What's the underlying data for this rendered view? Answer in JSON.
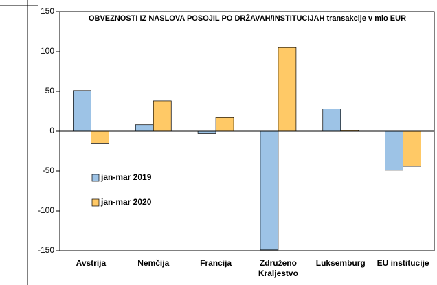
{
  "chart_data": {
    "type": "bar",
    "title": "OBVEZNOSTI IZ NASLOVA POSOJIL PO DRŽAVAH/INSTITUCIJAH transakcije v mio EUR",
    "categories": [
      "Avstrija",
      "Nemčija",
      "Francija",
      "Združeno Kraljestvo",
      "Luksemburg",
      "EU institucije"
    ],
    "series": [
      {
        "name": "jan-mar 2019",
        "color": "#9dc3e6",
        "values": [
          51,
          8,
          -3,
          -149,
          28,
          -49
        ]
      },
      {
        "name": "jan-mar 2020",
        "color": "#ffc966",
        "values": [
          -15,
          38,
          17,
          105,
          1,
          -44
        ]
      }
    ],
    "ylim": [
      -150,
      150
    ],
    "yticks": [
      -150,
      -100,
      -50,
      0,
      50,
      100,
      150
    ],
    "legend": "left"
  }
}
